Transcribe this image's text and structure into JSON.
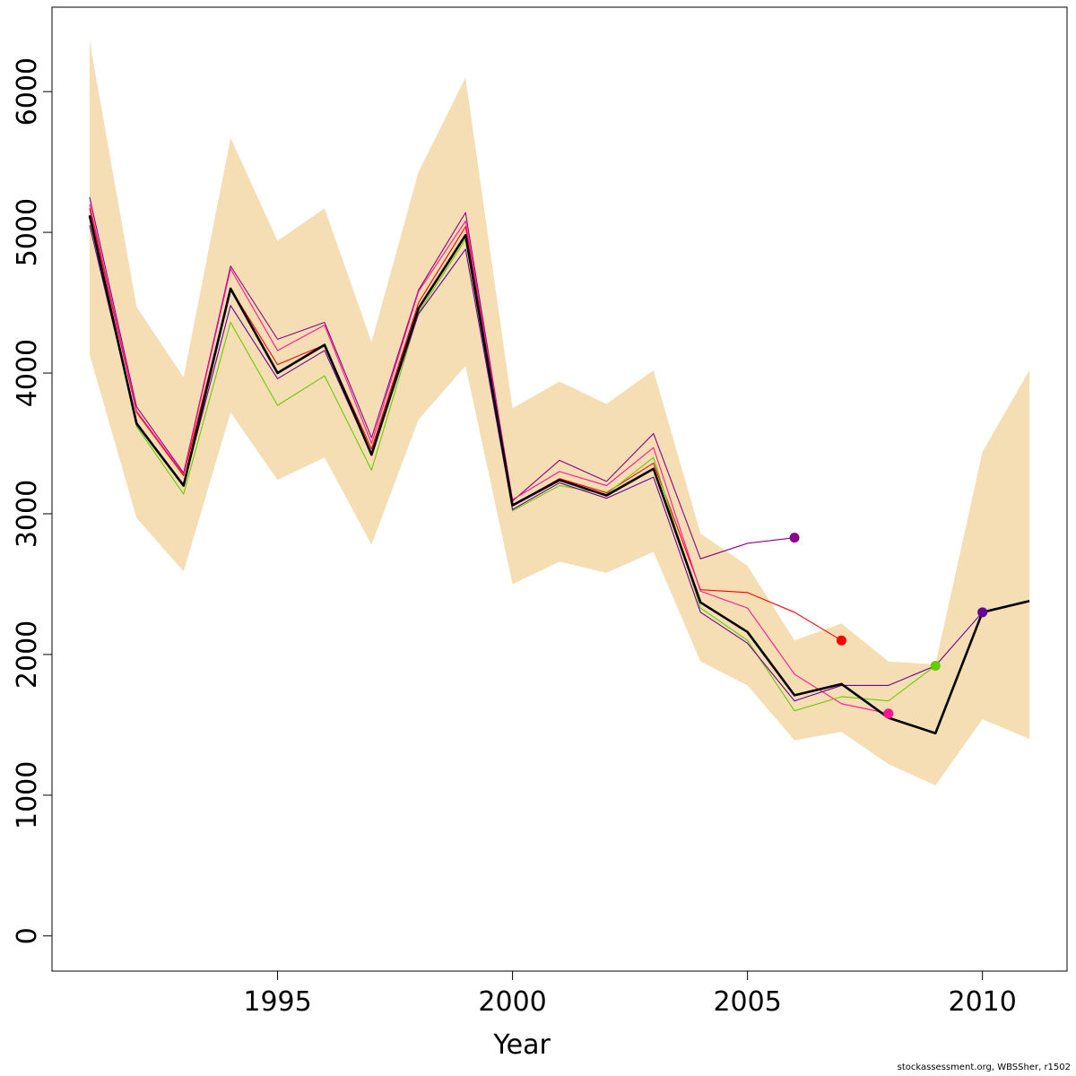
{
  "chart_data": {
    "type": "line",
    "xlabel": "Year",
    "ylabel": "",
    "xlim": [
      1990.2,
      2011.8
    ],
    "ylim": [
      -250,
      6600
    ],
    "x_ticks": [
      1995,
      2000,
      2005,
      2010
    ],
    "y_ticks": [
      0,
      1000,
      2000,
      3000,
      4000,
      5000,
      6000
    ],
    "grid": false,
    "legend": "none",
    "band": {
      "color": "#f5deb3",
      "x": [
        1991,
        1992,
        1993,
        1994,
        1995,
        1996,
        1997,
        1998,
        1999,
        2000,
        2001,
        2002,
        2003,
        2004,
        2005,
        2006,
        2007,
        2008,
        2009,
        2010,
        2011
      ],
      "lower": [
        4130,
        2970,
        2590,
        3720,
        3240,
        3400,
        2780,
        3670,
        4050,
        2500,
        2660,
        2580,
        2730,
        1950,
        1780,
        1390,
        1450,
        1220,
        1070,
        1540,
        1400
      ],
      "upper": [
        6360,
        4470,
        3970,
        5670,
        4940,
        5170,
        4220,
        5430,
        6100,
        3750,
        3940,
        3780,
        4020,
        2860,
        2630,
        2100,
        2220,
        1950,
        1930,
        3440,
        4020
      ]
    },
    "series": [
      {
        "color": "#8b008b",
        "x": [
          1991,
          1992,
          1993,
          1994,
          1995,
          1996,
          1997,
          1998,
          1999,
          2000,
          2001,
          2002,
          2003,
          2004,
          2005,
          2006
        ],
        "values": [
          5250,
          3760,
          3290,
          4760,
          4240,
          4360,
          3540,
          4590,
          5140,
          3090,
          3380,
          3230,
          3570,
          2680,
          2790,
          2830
        ],
        "end_point": true
      },
      {
        "color": "#ff0000",
        "x": [
          1991,
          1992,
          1993,
          1994,
          1995,
          1996,
          1997,
          1998,
          1999,
          2000,
          2001,
          2002,
          2003,
          2004,
          2005,
          2006,
          2007
        ],
        "values": [
          5170,
          3720,
          3270,
          4600,
          4060,
          4200,
          3460,
          4500,
          5040,
          3060,
          3250,
          3150,
          3360,
          2460,
          2440,
          2300,
          2100
        ],
        "end_point": true
      },
      {
        "color": "#ff1493",
        "x": [
          1991,
          1992,
          1993,
          1994,
          1995,
          1996,
          1997,
          1998,
          1999,
          2000,
          2001,
          2002,
          2003,
          2004,
          2005,
          2006,
          2007,
          2008
        ],
        "values": [
          5200,
          3730,
          3280,
          4740,
          4160,
          4340,
          3500,
          4580,
          5080,
          3100,
          3300,
          3200,
          3470,
          2450,
          2330,
          1860,
          1650,
          1580
        ],
        "end_point": true
      },
      {
        "color": "#66cc00",
        "x": [
          1991,
          1992,
          1993,
          1994,
          1995,
          1996,
          1997,
          1998,
          1999,
          2000,
          2001,
          2002,
          2003,
          2004,
          2005,
          2006,
          2007,
          2008,
          2009
        ],
        "values": [
          5100,
          3620,
          3140,
          4360,
          3770,
          3980,
          3310,
          4430,
          4950,
          3020,
          3200,
          3140,
          3400,
          2330,
          2100,
          1600,
          1700,
          1670,
          1920
        ],
        "end_point": true
      },
      {
        "color": "#660099",
        "x": [
          1991,
          1992,
          1993,
          1994,
          1995,
          1996,
          1997,
          1998,
          1999,
          2000,
          2001,
          2002,
          2003,
          2004,
          2005,
          2006,
          2007,
          2008,
          2009,
          2010
        ],
        "values": [
          5050,
          3650,
          3200,
          4480,
          3960,
          4160,
          3420,
          4420,
          4880,
          3030,
          3220,
          3110,
          3260,
          2300,
          2080,
          1670,
          1780,
          1780,
          1920,
          2300
        ],
        "end_point": true
      },
      {
        "color": "#000000",
        "bold": true,
        "x": [
          1991,
          1992,
          1993,
          1994,
          1995,
          1996,
          1997,
          1998,
          1999,
          2000,
          2001,
          2002,
          2003,
          2004,
          2005,
          2006,
          2007,
          2008,
          2009,
          2010,
          2011
        ],
        "values": [
          5120,
          3640,
          3200,
          4600,
          4000,
          4200,
          3420,
          4460,
          4980,
          3060,
          3240,
          3130,
          3320,
          2370,
          2160,
          1710,
          1790,
          1550,
          1440,
          2300,
          2380
        ],
        "end_point": false
      }
    ]
  },
  "credit": "stockassessment.org, WBSSher, r1502"
}
